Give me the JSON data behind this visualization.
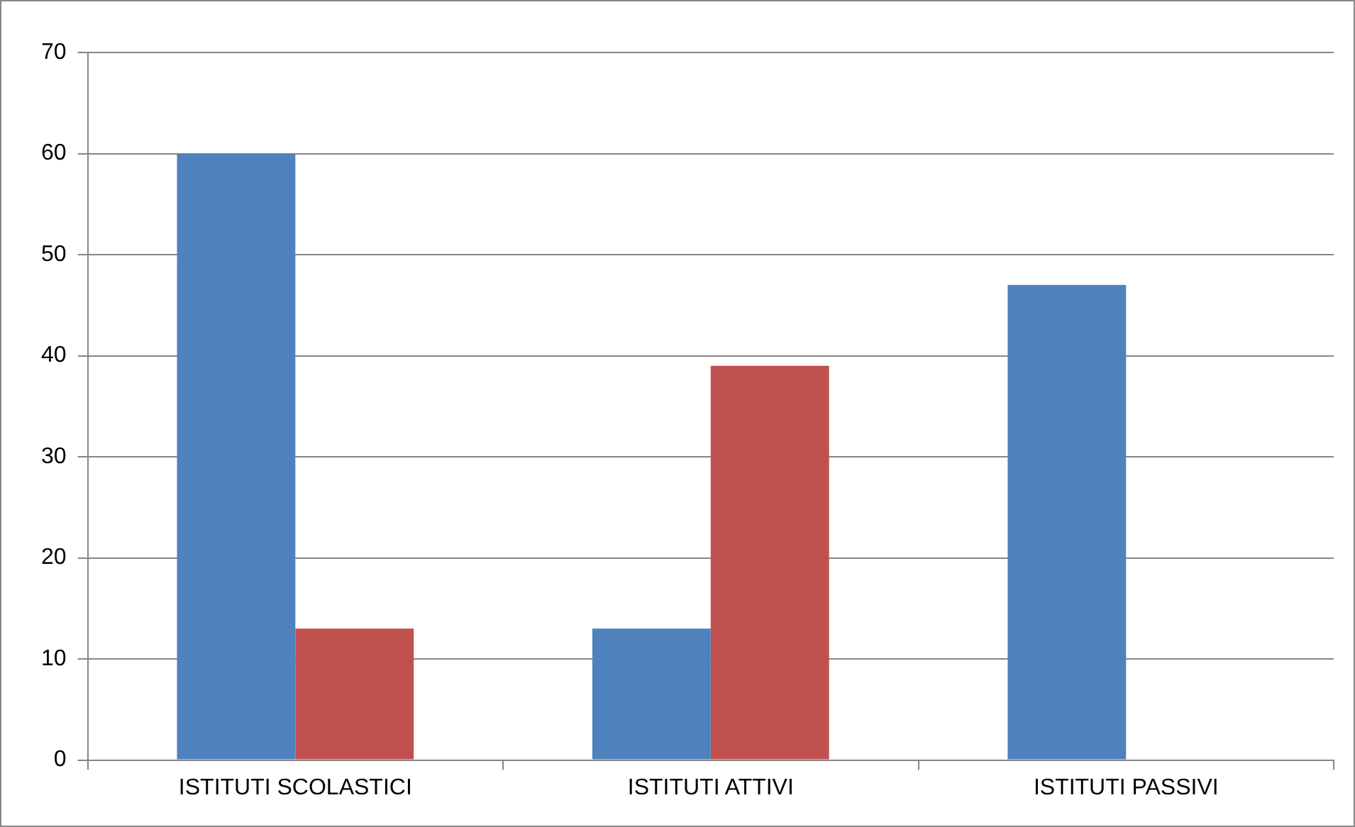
{
  "chart_data": {
    "type": "bar",
    "categories": [
      "ISTITUTI SCOLASTICI",
      "ISTITUTI ATTIVI",
      "ISTITUTI PASSIVI"
    ],
    "series": [
      {
        "color": "#4f81bd",
        "values": [
          60,
          13,
          47
        ]
      },
      {
        "color": "#c0504d",
        "values": [
          13,
          39,
          null
        ]
      }
    ],
    "ylim": [
      0,
      70
    ],
    "yticks": [
      0,
      10,
      20,
      30,
      40,
      50,
      60,
      70
    ],
    "grid": "y",
    "legend": false
  }
}
